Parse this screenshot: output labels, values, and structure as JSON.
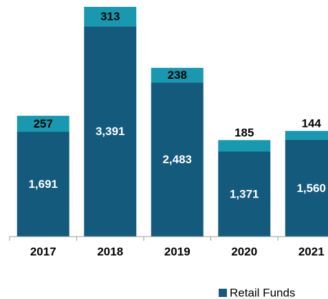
{
  "chart_data": {
    "type": "stacked_bar",
    "categories": [
      "2017",
      "2018",
      "2019",
      "2020",
      "2021"
    ],
    "series": [
      {
        "name": "Retail Funds",
        "color": "#135a7c",
        "values": [
          1691,
          3391,
          2483,
          1371,
          1560
        ],
        "value_labels": [
          "1,691",
          "3,391",
          "2,483",
          "1,371",
          "1,560"
        ],
        "label_color": "#ffffff"
      },
      {
        "color": "#1899b0",
        "values": [
          257,
          313,
          238,
          185,
          144
        ],
        "label_color": "#000000"
      }
    ],
    "legend": "bottom-right"
  }
}
